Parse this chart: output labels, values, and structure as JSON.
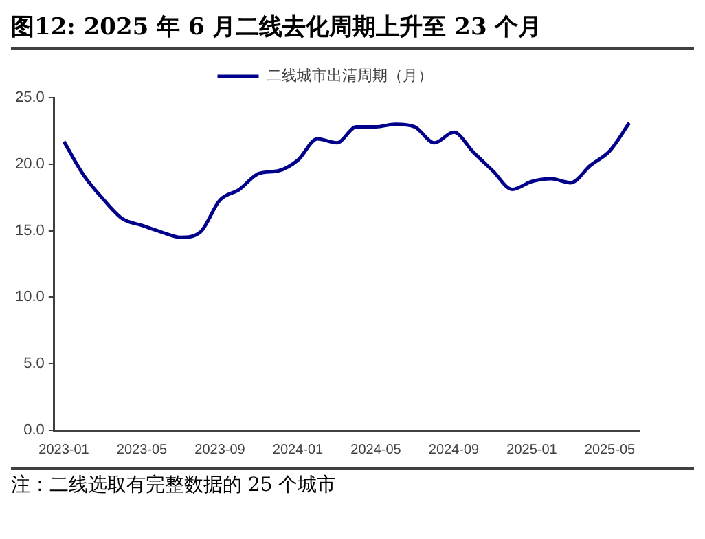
{
  "chart_data": {
    "type": "line",
    "title": "图12:  2025 年 6 月二线去化周期上升至 23 个月",
    "categories": [
      "2023-01",
      null,
      null,
      null,
      "2023-05",
      null,
      null,
      null,
      "2023-09",
      null,
      null,
      null,
      "2024-01",
      null,
      null,
      null,
      "2024-05",
      null,
      null,
      null,
      "2024-09",
      null,
      null,
      null,
      "2025-01",
      null,
      null,
      null,
      "2025-05",
      null
    ],
    "series": [
      {
        "name": "二线城市出清周期（月）",
        "color": "#00008b",
        "values": [
          21.7,
          19.2,
          17.4,
          15.9,
          15.4,
          14.9,
          14.5,
          14.9,
          17.3,
          18.1,
          19.3,
          19.5,
          20.3,
          21.9,
          21.6,
          22.8,
          22.8,
          23.0,
          22.8,
          21.6,
          22.4,
          20.9,
          19.5,
          18.1,
          18.7,
          18.9,
          18.6,
          19.9,
          21.0,
          23.1
        ]
      }
    ],
    "ylim": [
      0,
      25
    ],
    "yticks": [
      {
        "value": 0,
        "label": "0.0"
      },
      {
        "value": 5,
        "label": "5.0"
      },
      {
        "value": 10,
        "label": "10.0"
      },
      {
        "value": 15,
        "label": "15.0"
      },
      {
        "value": 20,
        "label": "20.0"
      },
      {
        "value": 25,
        "label": "25.0"
      }
    ],
    "grid": false,
    "legend": "top",
    "marker": "none",
    "line_style": "solid",
    "annotations": [
      "注：二线选取有完整数据的 25 个城市"
    ]
  }
}
